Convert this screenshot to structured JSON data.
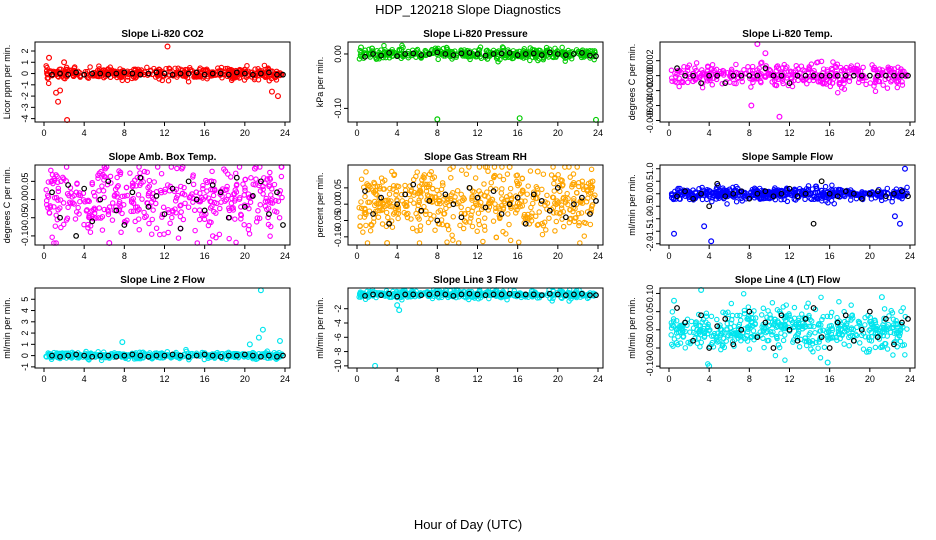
{
  "page": {
    "title": "HDP_120218  Slope Diagnostics",
    "x_axis_label": "Hour of Day (UTC)"
  },
  "chart_data": [
    {
      "type": "scatter",
      "title": "Slope Li-820 CO2",
      "ylabel": "Licor ppm per min.",
      "color": "#ff0000",
      "xlim": [
        0,
        24
      ],
      "ylim": [
        -4.3,
        2.8
      ],
      "xticks": [
        0,
        4,
        8,
        12,
        16,
        20,
        24
      ],
      "yticks": [
        -4,
        -3,
        -2,
        -1,
        0,
        1,
        2
      ],
      "x_tick_labels": [
        "0",
        "4",
        "8",
        "12",
        "16",
        "20",
        "24"
      ],
      "y_tick_labels": [
        "-4",
        "-3",
        "-2",
        "-1",
        "0",
        "1",
        "2"
      ],
      "spread": 0.25,
      "n": 420,
      "outliers": [
        [
          0.5,
          1.4
        ],
        [
          1.2,
          -1.7
        ],
        [
          1.4,
          -2.5
        ],
        [
          1.6,
          -1.5
        ],
        [
          2.3,
          -4.2
        ],
        [
          12.3,
          2.4
        ],
        [
          23.3,
          -2.0
        ],
        [
          22.7,
          -1.6
        ],
        [
          2.0,
          1.0
        ]
      ],
      "black_x": [
        0.8,
        1.6,
        2.4,
        3.2,
        4.0,
        4.8,
        5.6,
        6.4,
        7.2,
        8.0,
        8.8,
        9.6,
        10.4,
        11.2,
        12.0,
        12.8,
        13.6,
        14.4,
        15.2,
        16.0,
        16.8,
        17.6,
        18.4,
        19.2,
        20.0,
        20.8,
        21.6,
        22.4,
        23.2,
        23.8
      ],
      "black_y": [
        -0.1,
        0.0,
        -0.1,
        0.1,
        -0.1,
        0.0,
        0.0,
        -0.1,
        0.0,
        0.1,
        0.0,
        -0.1,
        0.0,
        0.1,
        0.0,
        -0.1,
        0.0,
        0.0,
        0.1,
        -0.1,
        0.0,
        0.0,
        -0.1,
        0.1,
        0.0,
        -0.1,
        0.0,
        0.1,
        -0.1,
        -0.1
      ]
    },
    {
      "type": "scatter",
      "title": "Slope Li-820 Pressure",
      "ylabel": "kPa per min.",
      "color": "#00cc00",
      "xlim": [
        0,
        24
      ],
      "ylim": [
        -0.125,
        0.022
      ],
      "xticks": [
        0,
        4,
        8,
        12,
        16,
        20,
        24
      ],
      "yticks": [
        -0.1,
        0.0
      ],
      "x_tick_labels": [
        "0",
        "4",
        "8",
        "12",
        "16",
        "20",
        "24"
      ],
      "y_tick_labels": [
        "-0.10",
        "0.00"
      ],
      "spread": 0.005,
      "n": 420,
      "outliers": [
        [
          8.0,
          -0.12
        ],
        [
          16.2,
          -0.118
        ],
        [
          23.8,
          -0.121
        ],
        [
          0.4,
          0.012
        ],
        [
          1.5,
          0.01
        ]
      ],
      "black_x": [
        0.8,
        1.6,
        2.4,
        3.2,
        4.0,
        4.8,
        5.6,
        6.4,
        7.2,
        8.0,
        8.8,
        9.6,
        10.4,
        11.2,
        12.0,
        12.8,
        13.6,
        14.4,
        15.2,
        16.0,
        16.8,
        17.6,
        18.4,
        19.2,
        20.0,
        20.8,
        21.6,
        22.4,
        23.2,
        23.8
      ],
      "black_y": [
        -0.005,
        0.0,
        -0.003,
        0.002,
        -0.004,
        0.0,
        0.001,
        -0.002,
        0.0,
        0.003,
        0.0,
        -0.002,
        0.001,
        0.002,
        0.0,
        -0.003,
        0.0,
        0.001,
        0.002,
        -0.002,
        0.0,
        0.001,
        -0.002,
        0.003,
        0.0,
        -0.002,
        0.0,
        0.002,
        -0.003,
        -0.004
      ]
    },
    {
      "type": "scatter",
      "title": "Slope Li-820 Temp.",
      "ylabel": "degrees C per min.",
      "color": "#ff00ff",
      "xlim": [
        0,
        24
      ],
      "ylim": [
        -0.0062,
        0.0045
      ],
      "xticks": [
        0,
        4,
        8,
        12,
        16,
        20,
        24
      ],
      "yticks": [
        -0.006,
        -0.004,
        -0.002,
        0.0,
        0.002
      ],
      "x_tick_labels": [
        "0",
        "4",
        "8",
        "12",
        "16",
        "20",
        "24"
      ],
      "y_tick_labels": [
        "-0.006",
        "-0.004",
        "-0.002",
        "0.000",
        "0.002"
      ],
      "spread": 0.0008,
      "n": 380,
      "outliers": [
        [
          8.8,
          0.0044
        ],
        [
          11.0,
          -0.0055
        ],
        [
          8.2,
          -0.004
        ],
        [
          9.6,
          0.003
        ]
      ],
      "black_x": [
        0.8,
        1.6,
        2.4,
        3.2,
        4.0,
        4.8,
        5.6,
        6.4,
        7.2,
        8.0,
        8.8,
        9.6,
        10.4,
        11.2,
        12.0,
        12.8,
        13.6,
        14.4,
        15.2,
        16.0,
        16.8,
        17.6,
        18.4,
        19.2,
        20.0,
        20.8,
        21.6,
        22.4,
        23.2,
        23.8
      ],
      "black_y": [
        0.001,
        0.0,
        0.0,
        -0.001,
        0.0,
        0.0,
        -0.001,
        0.0,
        0.0,
        0.0,
        0.0,
        0.001,
        0.0,
        0.0,
        -0.001,
        0.0,
        0.0,
        0.0,
        0.0,
        0.0,
        0.0,
        0.0,
        0.0,
        0.0,
        0.0,
        0.0,
        0.0,
        0.0,
        0.0,
        0.0
      ]
    },
    {
      "type": "scatter",
      "title": "Slope Amb. Box Temp.",
      "ylabel": "degrees C per min.",
      "color": "#ff00ff",
      "xlim": [
        0,
        24
      ],
      "ylim": [
        -0.125,
        0.095
      ],
      "xticks": [
        0,
        4,
        8,
        12,
        16,
        20,
        24
      ],
      "yticks": [
        -0.1,
        -0.05,
        0.0,
        0.05
      ],
      "x_tick_labels": [
        "0",
        "4",
        "8",
        "12",
        "16",
        "20",
        "24"
      ],
      "y_tick_labels": [
        "-0.10",
        "-0.05",
        "0.00",
        "0.05"
      ],
      "spread": 0.045,
      "n": 430,
      "outliers": [
        [
          6.5,
          -0.12
        ],
        [
          13.8,
          0.09
        ],
        [
          21.0,
          0.085
        ]
      ],
      "black_x": [
        0.8,
        1.6,
        2.4,
        3.2,
        4.0,
        4.8,
        5.6,
        6.4,
        7.2,
        8.0,
        8.8,
        9.6,
        10.4,
        11.2,
        12.0,
        12.8,
        13.6,
        14.4,
        15.2,
        16.0,
        16.8,
        17.6,
        18.4,
        19.2,
        20.0,
        20.8,
        21.6,
        22.4,
        23.2,
        23.8
      ],
      "black_y": [
        0.02,
        -0.05,
        0.04,
        -0.1,
        0.03,
        -0.06,
        0.0,
        0.05,
        -0.03,
        -0.07,
        0.02,
        0.06,
        -0.02,
        0.01,
        -0.04,
        0.03,
        -0.08,
        0.05,
        0.0,
        -0.03,
        0.04,
        0.02,
        -0.05,
        0.06,
        -0.02,
        0.01,
        0.05,
        -0.04,
        0.02,
        -0.07
      ]
    },
    {
      "type": "scatter",
      "title": "Slope Gas Stream RH",
      "ylabel": "percent per min.",
      "color": "#ffa500",
      "xlim": [
        0,
        24
      ],
      "ylim": [
        -0.125,
        0.12
      ],
      "xticks": [
        0,
        4,
        8,
        12,
        16,
        20,
        24
      ],
      "yticks": [
        -0.1,
        -0.05,
        0.0,
        0.05
      ],
      "x_tick_labels": [
        "0",
        "4",
        "8",
        "12",
        "16",
        "20",
        "24"
      ],
      "y_tick_labels": [
        "-0.10",
        "-0.05",
        "0.00",
        "0.05"
      ],
      "spread": 0.055,
      "n": 520,
      "outliers": [
        [
          15.2,
          0.115
        ],
        [
          3.0,
          -0.12
        ],
        [
          18.0,
          0.1
        ]
      ],
      "black_x": [
        0.8,
        1.6,
        2.4,
        3.2,
        4.0,
        4.8,
        5.6,
        6.4,
        7.2,
        8.0,
        8.8,
        9.6,
        10.4,
        11.2,
        12.0,
        12.8,
        13.6,
        14.4,
        15.2,
        16.0,
        16.8,
        17.6,
        18.4,
        19.2,
        20.0,
        20.8,
        21.6,
        22.4,
        23.2,
        23.8
      ],
      "black_y": [
        0.04,
        -0.03,
        0.02,
        -0.06,
        0.0,
        0.03,
        0.06,
        -0.02,
        0.01,
        -0.05,
        0.03,
        0.0,
        -0.04,
        0.05,
        0.02,
        -0.01,
        0.04,
        -0.03,
        0.0,
        0.02,
        -0.06,
        0.03,
        0.01,
        -0.02,
        0.05,
        -0.04,
        0.0,
        0.02,
        -0.03,
        0.01
      ]
    },
    {
      "type": "scatter",
      "title": "Slope Sample Flow",
      "ylabel": "ml/min per min.",
      "color": "#0000ff",
      "xlim": [
        0,
        24
      ],
      "ylim": [
        -2.05,
        1.15
      ],
      "xticks": [
        0,
        4,
        8,
        12,
        16,
        20,
        24
      ],
      "yticks": [
        -2.0,
        -1.5,
        -1.0,
        -0.5,
        0.0,
        0.5,
        1.0
      ],
      "x_tick_labels": [
        "0",
        "4",
        "8",
        "12",
        "16",
        "20",
        "24"
      ],
      "y_tick_labels": [
        "-2.0",
        "-1.5",
        "-1.0",
        "-0.5",
        "0.0",
        "0.5",
        "1.0"
      ],
      "spread": 0.12,
      "n": 500,
      "outliers": [
        [
          0.5,
          -1.6
        ],
        [
          4.2,
          -1.9
        ],
        [
          23.5,
          1.0
        ],
        [
          22.5,
          -0.9
        ],
        [
          23.0,
          -1.2
        ],
        [
          3.5,
          -1.3
        ]
      ],
      "black_x": [
        0.8,
        1.6,
        2.4,
        3.2,
        4.0,
        4.8,
        5.6,
        6.4,
        7.2,
        8.0,
        8.8,
        9.6,
        10.4,
        11.2,
        12.0,
        12.8,
        13.6,
        14.4,
        15.2,
        16.0,
        16.8,
        17.6,
        18.4,
        19.2,
        20.0,
        20.8,
        21.6,
        22.4,
        23.2,
        23.8
      ],
      "black_y": [
        -0.1,
        0.1,
        -0.2,
        0.0,
        -0.5,
        0.4,
        -0.1,
        0.0,
        0.1,
        -0.2,
        0.0,
        0.1,
        -0.1,
        0.0,
        0.2,
        -0.1,
        0.0,
        -1.2,
        0.5,
        0.0,
        -0.1,
        0.1,
        0.0,
        -0.2,
        0.0,
        0.1,
        -0.1,
        0.0,
        0.1,
        -0.1
      ]
    },
    {
      "type": "scatter",
      "title": "Slope Line 2 Flow",
      "ylabel": "ml/min per min.",
      "color": "#00e5ee",
      "xlim": [
        0,
        24
      ],
      "ylim": [
        -1.1,
        6.0
      ],
      "xticks": [
        0,
        4,
        8,
        12,
        16,
        20,
        24
      ],
      "yticks": [
        -1,
        0,
        1,
        2,
        3,
        4,
        5
      ],
      "x_tick_labels": [
        "0",
        "4",
        "8",
        "12",
        "16",
        "20",
        "24"
      ],
      "y_tick_labels": [
        "-1",
        "0",
        "1",
        "2",
        "3",
        "4",
        "5"
      ],
      "spread": 0.15,
      "n": 420,
      "outliers": [
        [
          21.6,
          5.8
        ],
        [
          21.8,
          2.3
        ],
        [
          21.4,
          1.6
        ],
        [
          7.8,
          1.2
        ],
        [
          23.5,
          1.3
        ],
        [
          20.5,
          1.0
        ]
      ],
      "black_x": [
        0.8,
        1.6,
        2.4,
        3.2,
        4.0,
        4.8,
        5.6,
        6.4,
        7.2,
        8.0,
        8.8,
        9.6,
        10.4,
        11.2,
        12.0,
        12.8,
        13.6,
        14.4,
        15.2,
        16.0,
        16.8,
        17.6,
        18.4,
        19.2,
        20.0,
        20.8,
        21.6,
        22.4,
        23.2,
        23.8
      ],
      "black_y": [
        0.0,
        -0.1,
        0.0,
        0.1,
        0.0,
        -0.1,
        0.0,
        0.0,
        -0.1,
        0.0,
        0.1,
        0.0,
        -0.1,
        0.0,
        0.0,
        0.1,
        0.0,
        -0.1,
        0.0,
        0.1,
        0.0,
        -0.1,
        0.0,
        0.0,
        0.1,
        0.0,
        -0.1,
        0.0,
        -0.1,
        0.0
      ]
    },
    {
      "type": "scatter",
      "title": "Slope Line 3 Flow",
      "ylabel": "ml/min per min.",
      "color": "#00e5ee",
      "xlim": [
        0,
        24
      ],
      "ylim": [
        -10.3,
        0.9
      ],
      "xticks": [
        0,
        4,
        8,
        12,
        16,
        20,
        24
      ],
      "yticks": [
        -10,
        -8,
        -6,
        -4,
        -2
      ],
      "x_tick_labels": [
        "0",
        "4",
        "8",
        "12",
        "16",
        "20",
        "24"
      ],
      "y_tick_labels": [
        "-10",
        "-8",
        "-6",
        "-4",
        "-2"
      ],
      "spread": 0.3,
      "n": 420,
      "outliers": [
        [
          1.8,
          -10.0
        ],
        [
          4.2,
          -2.2
        ],
        [
          4.0,
          -1.5
        ]
      ],
      "black_x": [
        0.8,
        1.6,
        2.4,
        3.2,
        4.0,
        4.8,
        5.6,
        6.4,
        7.2,
        8.0,
        8.8,
        9.6,
        10.4,
        11.2,
        12.0,
        12.8,
        13.6,
        14.4,
        15.2,
        16.0,
        16.8,
        17.6,
        18.4,
        19.2,
        20.0,
        20.8,
        21.6,
        22.4,
        23.2,
        23.8
      ],
      "black_y": [
        -0.2,
        0.0,
        -0.1,
        0.1,
        -0.3,
        0.0,
        0.0,
        -0.1,
        0.0,
        0.1,
        0.0,
        -0.2,
        0.0,
        0.1,
        0.0,
        -0.1,
        0.0,
        0.0,
        0.1,
        -0.1,
        0.0,
        0.0,
        -0.1,
        0.1,
        0.0,
        -0.1,
        0.0,
        0.1,
        -0.1,
        -0.1
      ]
    },
    {
      "type": "scatter",
      "title": "Slope Line 4 (LT) Flow",
      "ylabel": "ml/min per min.",
      "color": "#00e5ee",
      "xlim": [
        0,
        24
      ],
      "ylim": [
        -0.105,
        0.115
      ],
      "xticks": [
        0,
        4,
        8,
        12,
        16,
        20,
        24
      ],
      "yticks": [
        -0.1,
        -0.05,
        0.0,
        0.05,
        0.1
      ],
      "x_tick_labels": [
        "0",
        "4",
        "8",
        "12",
        "16",
        "20",
        "24"
      ],
      "y_tick_labels": [
        "-0.10",
        "-0.05",
        "0.00",
        "0.05",
        "0.10"
      ],
      "spread": 0.03,
      "n": 520,
      "outliers": [
        [
          3.2,
          0.11
        ],
        [
          4.0,
          -0.1
        ],
        [
          15.8,
          -0.09
        ],
        [
          21.2,
          0.09
        ],
        [
          0.5,
          0.08
        ]
      ],
      "black_x": [
        0.8,
        1.6,
        2.4,
        3.2,
        4.0,
        4.8,
        5.6,
        6.4,
        7.2,
        8.0,
        8.8,
        9.6,
        10.4,
        11.2,
        12.0,
        12.8,
        13.6,
        14.4,
        15.2,
        16.0,
        16.8,
        17.6,
        18.4,
        19.2,
        20.0,
        20.8,
        21.6,
        22.4,
        23.2,
        23.8
      ],
      "black_y": [
        0.06,
        0.02,
        -0.03,
        0.04,
        -0.05,
        0.01,
        0.03,
        -0.04,
        0.0,
        0.05,
        -0.02,
        0.02,
        -0.05,
        0.04,
        0.0,
        -0.03,
        0.03,
        0.06,
        -0.02,
        -0.05,
        0.02,
        0.04,
        -0.03,
        0.0,
        0.05,
        -0.02,
        0.03,
        -0.04,
        0.02,
        0.03
      ]
    }
  ]
}
